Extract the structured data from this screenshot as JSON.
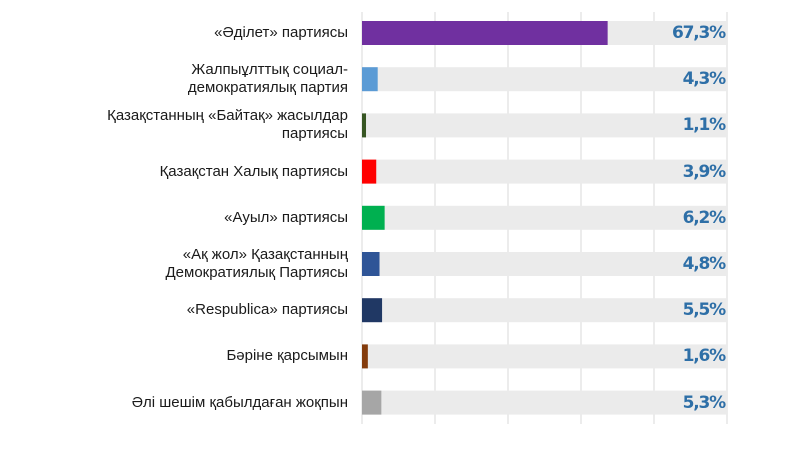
{
  "chart_data": {
    "type": "bar",
    "orientation": "horizontal",
    "categories": [
      [
        "«Әділет» партиясы"
      ],
      [
        "Жалпыұлттық социал-",
        "демократиялық партия"
      ],
      [
        "Қазақстанның «Байтақ» жасылдар",
        "партиясы"
      ],
      [
        "Қазақстан Халық партиясы"
      ],
      [
        "«Ауыл» партиясы"
      ],
      [
        "«Ақ жол» Қазақстанның",
        "Демократиялық Партиясы"
      ],
      [
        "«Respublica» партиясы"
      ],
      [
        "Бәріне қарсымын"
      ],
      [
        "Әлі шешім қабылдаған жоқпын"
      ]
    ],
    "values": [
      67.3,
      4.3,
      1.1,
      3.9,
      6.2,
      4.8,
      5.5,
      1.6,
      5.3
    ],
    "value_labels": [
      "67,3%",
      "4,3%",
      "1,1%",
      "3,9%",
      "6,2%",
      "4,8%",
      "5,5%",
      "1,6%",
      "5,3%"
    ],
    "bar_colors": [
      "#7030a0",
      "#5b9bd5",
      "#375623",
      "#ff0000",
      "#00b050",
      "#2f5597",
      "#203864",
      "#843c0c",
      "#a6a6a6"
    ],
    "track_color": "#ebebeb",
    "grid_color": "#d9d9d9",
    "value_label_color": "#2e6fa7",
    "xlim": [
      0,
      100
    ],
    "grid": true,
    "legend": "none"
  }
}
